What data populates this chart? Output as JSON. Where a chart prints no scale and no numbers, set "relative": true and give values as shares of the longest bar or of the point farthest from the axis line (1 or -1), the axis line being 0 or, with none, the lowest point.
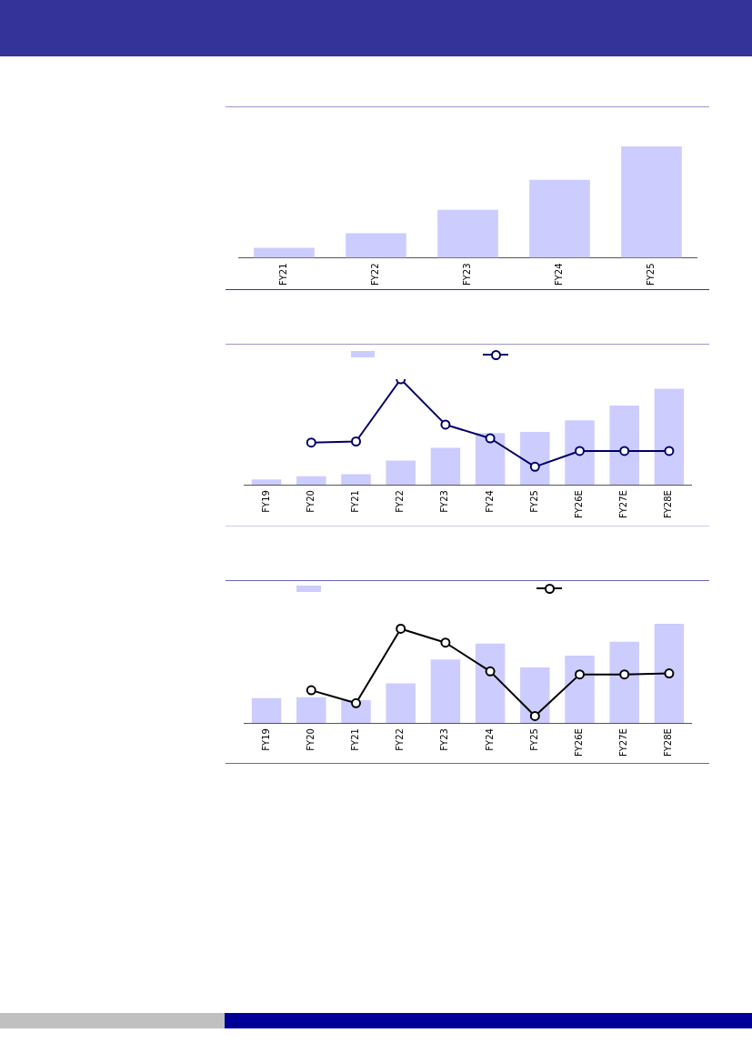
{
  "chart_data": [
    {
      "type": "bar",
      "relative": true,
      "categories": [
        "FY21",
        "FY22",
        "FY23",
        "FY24",
        "FY25"
      ],
      "color": "#ccccff",
      "values": [
        0.09,
        0.22,
        0.43,
        0.7,
        1
      ]
    },
    {
      "type": "bar",
      "relative": true,
      "marker": "circle",
      "categories": [
        "FY19",
        "FY20",
        "FY21",
        "FY22",
        "FY23",
        "FY24",
        "FY25",
        "FY26E",
        "FY27E",
        "FY28E"
      ],
      "series": [
        {
          "type": "bar",
          "color": "#ccccff",
          "values": [
            0.05,
            0.08,
            0.1,
            0.23,
            0.35,
            0.49,
            0.5,
            0.61,
            0.75,
            0.91
          ]
        },
        {
          "type": "line",
          "color": "#000066",
          "values": [
            null,
            0.4,
            0.41,
            1,
            0.57,
            0.44,
            0.17,
            0.32,
            0.32,
            0.32
          ]
        }
      ]
    },
    {
      "type": "bar",
      "relative": true,
      "marker": "circle",
      "categories": [
        "FY19",
        "FY20",
        "FY21",
        "FY22",
        "FY23",
        "FY24",
        "FY25",
        "FY26E",
        "FY27E",
        "FY28E"
      ],
      "series": [
        {
          "type": "bar",
          "color": "#ccccff",
          "values": [
            0.25,
            0.26,
            0.23,
            0.4,
            0.64,
            0.8,
            0.56,
            0.68,
            0.82,
            1
          ]
        },
        {
          "type": "line",
          "color": "#000000",
          "values": [
            null,
            0.33,
            0.2,
            0.95,
            0.81,
            0.52,
            0.07,
            0.49,
            0.49,
            0.5
          ]
        }
      ]
    }
  ]
}
